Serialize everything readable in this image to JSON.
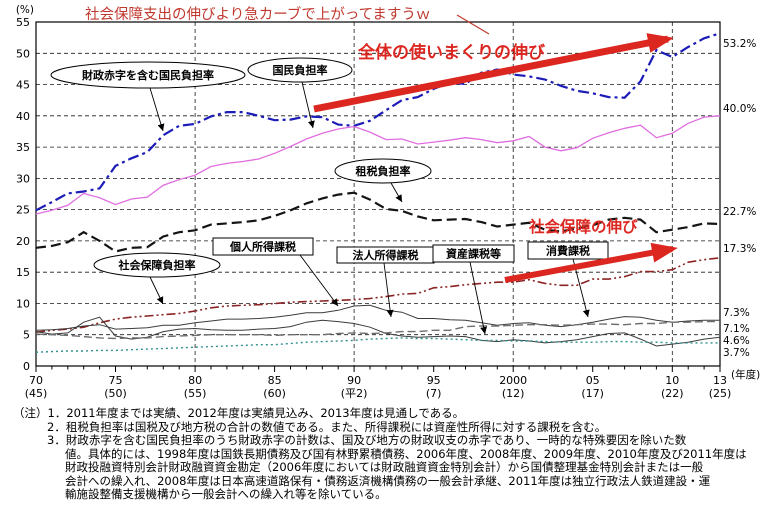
{
  "annotations": {
    "top_note": "社会保障支出の伸びより急カーブで上がってますうｗ",
    "overall_growth": "全体の使いまくりの伸び",
    "social_security_growth": "社会保障の伸び",
    "red_color": "#dc2721",
    "top_note_color": "#c0392f"
  },
  "axis": {
    "y_unit": "(%)",
    "x_unit": "(年度)",
    "y_ticks": [
      0,
      5,
      10,
      15,
      20,
      25,
      30,
      35,
      40,
      45,
      50,
      55
    ],
    "x_ticks": [
      {
        "year": 1970,
        "label": "70",
        "era": "(45)"
      },
      {
        "year": 1975,
        "label": "75",
        "era": "(50)"
      },
      {
        "year": 1980,
        "label": "80",
        "era": "(55)"
      },
      {
        "year": 1985,
        "label": "85",
        "era": "(60)"
      },
      {
        "year": 1990,
        "label": "90",
        "era": "(平2)"
      },
      {
        "year": 1995,
        "label": "95",
        "era": "(7)"
      },
      {
        "year": 2000,
        "label": "2000",
        "era": "(12)"
      },
      {
        "year": 2005,
        "label": "05",
        "era": "(17)"
      },
      {
        "year": 2010,
        "label": "10",
        "era": "(22)"
      },
      {
        "year": 2013,
        "label": "13",
        "era": "(25)"
      }
    ]
  },
  "chart_data": {
    "type": "line",
    "title": "",
    "xlabel": "(年度)",
    "ylabel": "(%)",
    "ylim": [
      0,
      55
    ],
    "grid": true,
    "x": [
      1970,
      1971,
      1972,
      1973,
      1974,
      1975,
      1976,
      1977,
      1978,
      1979,
      1980,
      1981,
      1982,
      1983,
      1984,
      1985,
      1986,
      1987,
      1988,
      1989,
      1990,
      1991,
      1992,
      1993,
      1994,
      1995,
      1996,
      1997,
      1998,
      1999,
      2000,
      2001,
      2002,
      2003,
      2004,
      2005,
      2006,
      2007,
      2008,
      2009,
      2010,
      2011,
      2012,
      2013
    ],
    "series": [
      {
        "id": "deficit-included-burden",
        "name": "財政赤字を含む国民負担率",
        "color": "#1c1cb8",
        "width": 2.2,
        "dash": "11 4 3 4",
        "values": [
          24.9,
          26.2,
          27.6,
          27.9,
          28.4,
          32.0,
          33.2,
          34.2,
          36.9,
          38.4,
          38.7,
          39.9,
          40.6,
          40.6,
          40.0,
          39.3,
          39.4,
          39.9,
          39.8,
          38.6,
          38.4,
          39.2,
          40.9,
          42.5,
          43.0,
          44.3,
          45.3,
          45.1,
          46.9,
          47.4,
          46.6,
          46.3,
          45.8,
          44.8,
          44.0,
          43.6,
          43.0,
          42.9,
          45.5,
          50.5,
          49.4,
          51.0,
          52.4,
          53.2
        ]
      },
      {
        "id": "national-burden",
        "name": "国民負担率",
        "color": "#e06ee0",
        "width": 1.3,
        "dash": "",
        "values": [
          24.3,
          24.9,
          25.7,
          27.6,
          26.9,
          25.8,
          26.7,
          27.0,
          28.9,
          29.8,
          30.5,
          31.9,
          32.4,
          32.7,
          33.1,
          34.0,
          35.1,
          36.3,
          37.2,
          37.9,
          38.3,
          37.4,
          36.2,
          36.3,
          35.5,
          35.8,
          36.1,
          36.5,
          36.2,
          35.7,
          36.0,
          36.7,
          35.0,
          34.4,
          34.9,
          36.4,
          37.3,
          38.0,
          38.5,
          36.5,
          37.2,
          38.8,
          39.8,
          40.0
        ]
      },
      {
        "id": "tax-burden",
        "name": "租税負担率",
        "color": "#141414",
        "width": 2.2,
        "dash": "10 5",
        "values": [
          18.9,
          19.2,
          19.8,
          21.4,
          20.0,
          18.3,
          18.9,
          19.0,
          20.7,
          21.4,
          21.7,
          22.6,
          22.8,
          23.0,
          23.3,
          24.0,
          24.9,
          26.0,
          26.8,
          27.4,
          27.7,
          26.6,
          25.1,
          24.8,
          23.9,
          23.3,
          23.4,
          23.5,
          23.0,
          22.3,
          22.6,
          22.9,
          21.8,
          21.5,
          22.0,
          22.5,
          23.4,
          23.7,
          23.4,
          21.4,
          21.8,
          22.2,
          22.8,
          22.7
        ]
      },
      {
        "id": "social-security-burden",
        "name": "社会保障負担率",
        "color": "#8b2424",
        "width": 1.6,
        "dash": "9 3 2 3 2 3",
        "values": [
          5.4,
          5.7,
          5.9,
          6.2,
          6.9,
          7.5,
          7.8,
          8.0,
          8.2,
          8.4,
          8.8,
          9.3,
          9.6,
          9.7,
          9.8,
          10.0,
          10.2,
          10.3,
          10.4,
          10.5,
          10.6,
          10.8,
          11.1,
          11.5,
          11.6,
          12.5,
          12.7,
          13.0,
          13.2,
          13.4,
          13.4,
          13.8,
          13.2,
          12.9,
          12.9,
          13.9,
          13.9,
          14.3,
          15.1,
          15.1,
          15.4,
          16.6,
          17.0,
          17.3
        ]
      },
      {
        "id": "personal-income-tax",
        "name": "個人所得課税",
        "color": "#3c3c3c",
        "width": 1,
        "dash": "",
        "values": [
          5.7,
          5.8,
          6.0,
          6.4,
          6.6,
          5.9,
          6.0,
          6.1,
          6.5,
          6.5,
          6.9,
          7.2,
          7.5,
          7.5,
          7.6,
          7.8,
          8.1,
          8.5,
          8.5,
          8.9,
          9.6,
          9.7,
          8.9,
          8.6,
          7.6,
          7.6,
          7.4,
          7.3,
          6.9,
          6.5,
          6.8,
          6.9,
          6.5,
          6.3,
          6.6,
          7.0,
          7.5,
          7.9,
          7.8,
          7.3,
          7.0,
          7.2,
          7.3,
          7.3
        ]
      },
      {
        "id": "corporate-income-tax",
        "name": "法人所得課税",
        "color": "#3c3c3c",
        "width": 1,
        "dash": "",
        "values": [
          5.5,
          5.1,
          5.3,
          7.0,
          7.8,
          4.8,
          4.3,
          4.6,
          5.5,
          5.9,
          6.0,
          5.8,
          5.7,
          5.7,
          5.9,
          6.0,
          6.3,
          7.0,
          7.3,
          7.1,
          6.8,
          6.2,
          5.2,
          4.8,
          4.6,
          4.7,
          4.8,
          4.7,
          4.1,
          3.9,
          4.2,
          4.0,
          3.7,
          3.9,
          4.2,
          4.7,
          5.2,
          5.3,
          4.3,
          3.2,
          3.5,
          3.8,
          4.3,
          4.6
        ]
      },
      {
        "id": "asset-tax",
        "name": "資産課税等",
        "color": "#2e8f8f",
        "width": 1.4,
        "dash": "2 3",
        "values": [
          2.2,
          2.3,
          2.4,
          2.4,
          2.5,
          2.5,
          2.6,
          2.7,
          2.8,
          2.9,
          3.0,
          3.1,
          3.2,
          3.3,
          3.4,
          3.4,
          3.6,
          3.8,
          3.9,
          4.0,
          4.1,
          4.3,
          4.4,
          4.5,
          4.4,
          4.4,
          4.3,
          4.2,
          4.1,
          4.1,
          4.0,
          4.0,
          3.9,
          3.8,
          3.8,
          3.8,
          3.9,
          3.9,
          3.8,
          3.8,
          3.7,
          3.7,
          3.7,
          3.7
        ]
      },
      {
        "id": "consumption-tax",
        "name": "消費課税",
        "color": "#6e6e6e",
        "width": 1.4,
        "dash": "8 4",
        "values": [
          5.1,
          5.0,
          4.9,
          4.7,
          4.5,
          4.4,
          4.5,
          4.5,
          4.7,
          4.8,
          4.9,
          5.0,
          5.0,
          5.0,
          5.0,
          4.9,
          5.0,
          5.0,
          5.0,
          5.2,
          5.3,
          5.2,
          5.3,
          5.5,
          5.5,
          5.7,
          5.7,
          6.3,
          6.4,
          6.4,
          6.5,
          6.6,
          6.6,
          6.5,
          6.6,
          6.7,
          6.7,
          6.6,
          6.8,
          6.8,
          7.0,
          7.0,
          7.1,
          7.1
        ]
      }
    ],
    "end_labels": [
      "53.2%",
      "40.0%",
      "22.7%",
      "17.3%",
      "7.3%",
      "7.1%",
      "4.6%",
      "3.7%"
    ],
    "legend_position": "in-plot callouts"
  },
  "notes": [
    "（注）1．2011年度までは実績、2012年度は実績見込み、2013年度は見通しである。",
    "2．租税負担率は国税及び地方税の合計の数値である。また、所得課税には資産性所得に対する課税を含む。",
    "3．財政赤字を含む国民負担率のうち財政赤字の計数は、国及び地方の財政収支の赤字であり、一時的な特殊要因を除いた数",
    "値。具体的には、1998年度は国鉄長期債務及び国有林野累積債務、2006年度、2008年度、2009年度、2010年度及び2011年度は",
    "財政投融資特別会計財政融資資金勘定（2006年度においては財政融資資金特別会計）から国債整理基金特別会計または一般",
    "会計への繰入れ、2008年度は日本高速道路保有・債務返済機構債務の一般会計承継、2011年度は独立行政法人鉄道建設・運",
    "輸施設整備支援機構から一般会計への繰入れ等を除いている。"
  ]
}
